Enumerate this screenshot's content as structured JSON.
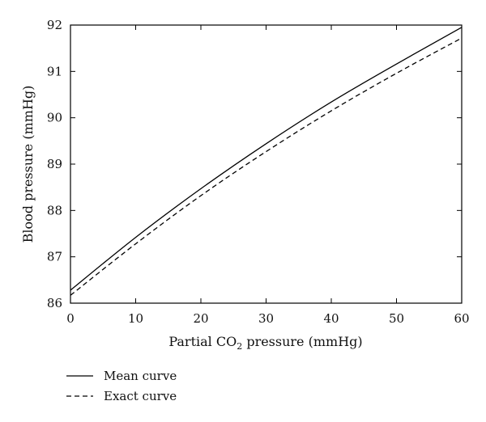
{
  "chart_data": {
    "type": "line",
    "title": "",
    "xlabel": {
      "prefix": "Partial CO",
      "subscript": "2",
      "suffix": " pressure (mmHg)"
    },
    "ylabel": "Blood pressure (mmHg)",
    "xlim": [
      0,
      60
    ],
    "ylim": [
      86,
      92
    ],
    "xticks": [
      "0",
      "10",
      "20",
      "30",
      "40",
      "50",
      "60"
    ],
    "yticks": [
      "86",
      "87",
      "88",
      "89",
      "90",
      "91",
      "92"
    ],
    "grid": false,
    "legend_position": "bottom-left-outside",
    "series": [
      {
        "name": "Mean curve",
        "style": "solid",
        "color": "#000000",
        "x": [
          0,
          10,
          20,
          30,
          40,
          50,
          60
        ],
        "y": [
          86.28,
          87.42,
          88.47,
          89.44,
          90.34,
          91.16,
          91.95
        ]
      },
      {
        "name": "Exact curve",
        "style": "dashed",
        "color": "#000000",
        "x": [
          0,
          10,
          20,
          30,
          40,
          50,
          60
        ],
        "y": [
          86.17,
          87.28,
          88.32,
          89.27,
          90.15,
          90.96,
          91.72
        ]
      }
    ]
  }
}
